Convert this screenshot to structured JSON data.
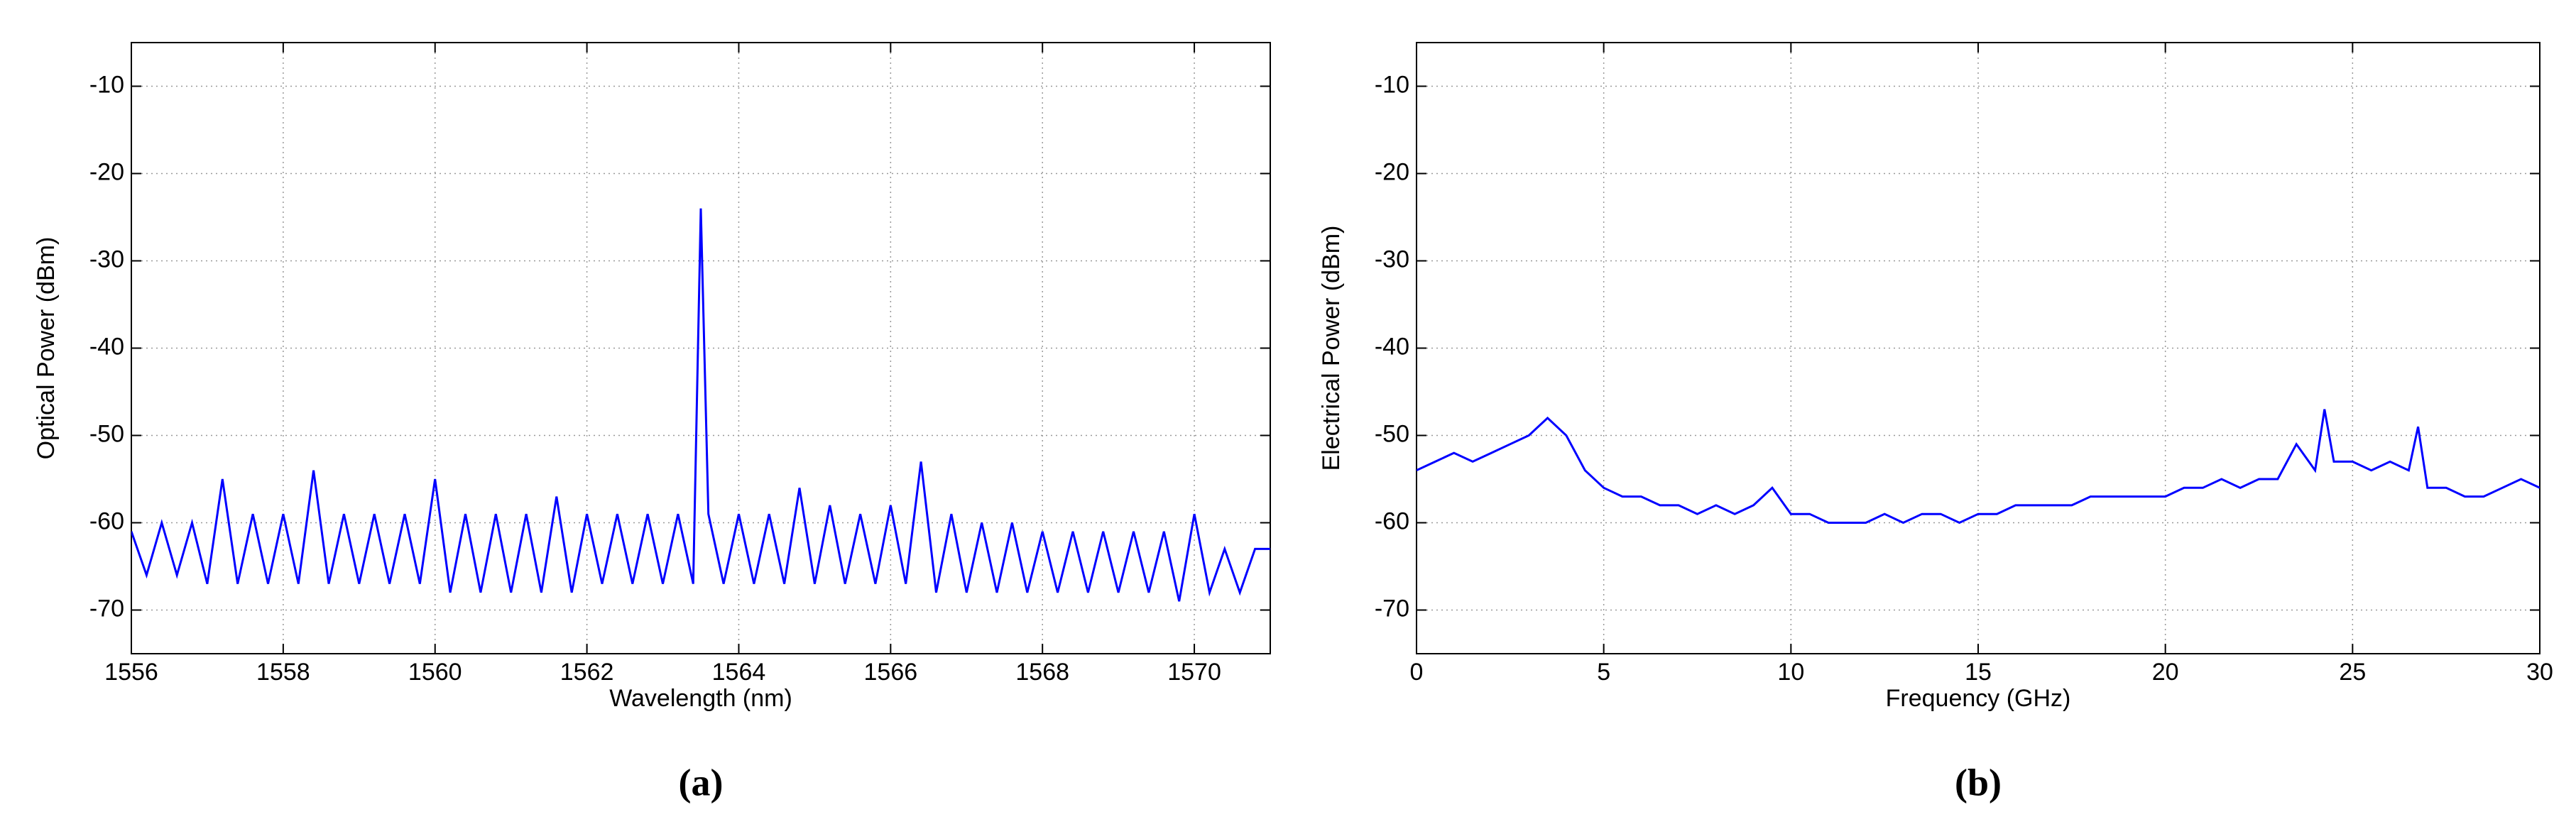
{
  "chart_data": [
    {
      "type": "line",
      "caption": "(a)",
      "xlabel": "Wavelength (nm)",
      "ylabel": "Optical Power (dBm)",
      "color": "#0000ff",
      "xlim": [
        1556,
        1571
      ],
      "xticks": [
        1556,
        1558,
        1560,
        1562,
        1564,
        1566,
        1568,
        1570
      ],
      "ylim": [
        -75,
        -5
      ],
      "yticks": [
        -10,
        -20,
        -30,
        -40,
        -50,
        -60,
        -70
      ],
      "grid": true,
      "x": [
        1556.0,
        1556.2,
        1556.4,
        1556.6,
        1556.8,
        1557.0,
        1557.2,
        1557.4,
        1557.6,
        1557.8,
        1558.0,
        1558.2,
        1558.4,
        1558.6,
        1558.8,
        1559.0,
        1559.2,
        1559.4,
        1559.6,
        1559.8,
        1560.0,
        1560.2,
        1560.4,
        1560.6,
        1560.8,
        1561.0,
        1561.2,
        1561.4,
        1561.6,
        1561.8,
        1562.0,
        1562.2,
        1562.4,
        1562.6,
        1562.8,
        1563.0,
        1563.2,
        1563.4,
        1563.5,
        1563.6,
        1563.8,
        1564.0,
        1564.2,
        1564.4,
        1564.6,
        1564.8,
        1565.0,
        1565.2,
        1565.4,
        1565.6,
        1565.8,
        1566.0,
        1566.2,
        1566.4,
        1566.6,
        1566.8,
        1567.0,
        1567.2,
        1567.4,
        1567.6,
        1567.8,
        1568.0,
        1568.2,
        1568.4,
        1568.6,
        1568.8,
        1569.0,
        1569.2,
        1569.4,
        1569.6,
        1569.8,
        1570.0,
        1570.2,
        1570.4,
        1570.6,
        1570.8,
        1571.0
      ],
      "values": [
        -61,
        -66,
        -60,
        -66,
        -60,
        -67,
        -55,
        -67,
        -59,
        -67,
        -59,
        -67,
        -54,
        -67,
        -59,
        -67,
        -59,
        -67,
        -59,
        -67,
        -55,
        -68,
        -59,
        -68,
        -59,
        -68,
        -59,
        -68,
        -57,
        -68,
        -59,
        -67,
        -59,
        -67,
        -59,
        -67,
        -59,
        -67,
        -24,
        -59,
        -67,
        -59,
        -67,
        -59,
        -67,
        -56,
        -67,
        -58,
        -67,
        -59,
        -67,
        -58,
        -67,
        -53,
        -68,
        -59,
        -68,
        -60,
        -68,
        -60,
        -68,
        -61,
        -68,
        -61,
        -68,
        -61,
        -68,
        -61,
        -68,
        -61,
        -69,
        -59,
        -68,
        -63,
        -68,
        -63,
        -63
      ]
    },
    {
      "type": "line",
      "caption": "(b)",
      "xlabel": "Frequency (GHz)",
      "ylabel": "Electrical Power (dBm)",
      "color": "#0000ff",
      "xlim": [
        0,
        30
      ],
      "xticks": [
        0,
        5,
        10,
        15,
        20,
        25,
        30
      ],
      "ylim": [
        -75,
        -5
      ],
      "yticks": [
        -10,
        -20,
        -30,
        -40,
        -50,
        -60,
        -70
      ],
      "grid": true,
      "x": [
        0,
        0.5,
        1,
        1.5,
        2,
        2.5,
        3,
        3.5,
        4,
        4.5,
        5,
        5.5,
        6,
        6.5,
        7,
        7.5,
        8,
        8.5,
        9,
        9.5,
        10,
        10.5,
        11,
        11.5,
        12,
        12.5,
        13,
        13.5,
        14,
        14.5,
        15,
        15.5,
        16,
        16.5,
        17,
        17.5,
        18,
        18.5,
        19,
        19.5,
        20,
        20.5,
        21,
        21.5,
        22,
        22.5,
        23,
        23.5,
        24,
        24.25,
        24.5,
        25,
        25.5,
        26,
        26.5,
        26.75,
        27,
        27.5,
        28,
        28.5,
        29,
        29.5,
        30
      ],
      "values": [
        -54,
        -53,
        -52,
        -53,
        -52,
        -51,
        -50,
        -48,
        -50,
        -54,
        -56,
        -57,
        -57,
        -58,
        -58,
        -59,
        -58,
        -59,
        -58,
        -56,
        -59,
        -59,
        -60,
        -60,
        -60,
        -59,
        -60,
        -59,
        -59,
        -60,
        -59,
        -59,
        -58,
        -58,
        -58,
        -58,
        -57,
        -57,
        -57,
        -57,
        -57,
        -56,
        -56,
        -55,
        -56,
        -55,
        -55,
        -51,
        -54,
        -47,
        -53,
        -53,
        -54,
        -53,
        -54,
        -49,
        -56,
        -56,
        -57,
        -57,
        -56,
        -55,
        -56
      ]
    }
  ]
}
